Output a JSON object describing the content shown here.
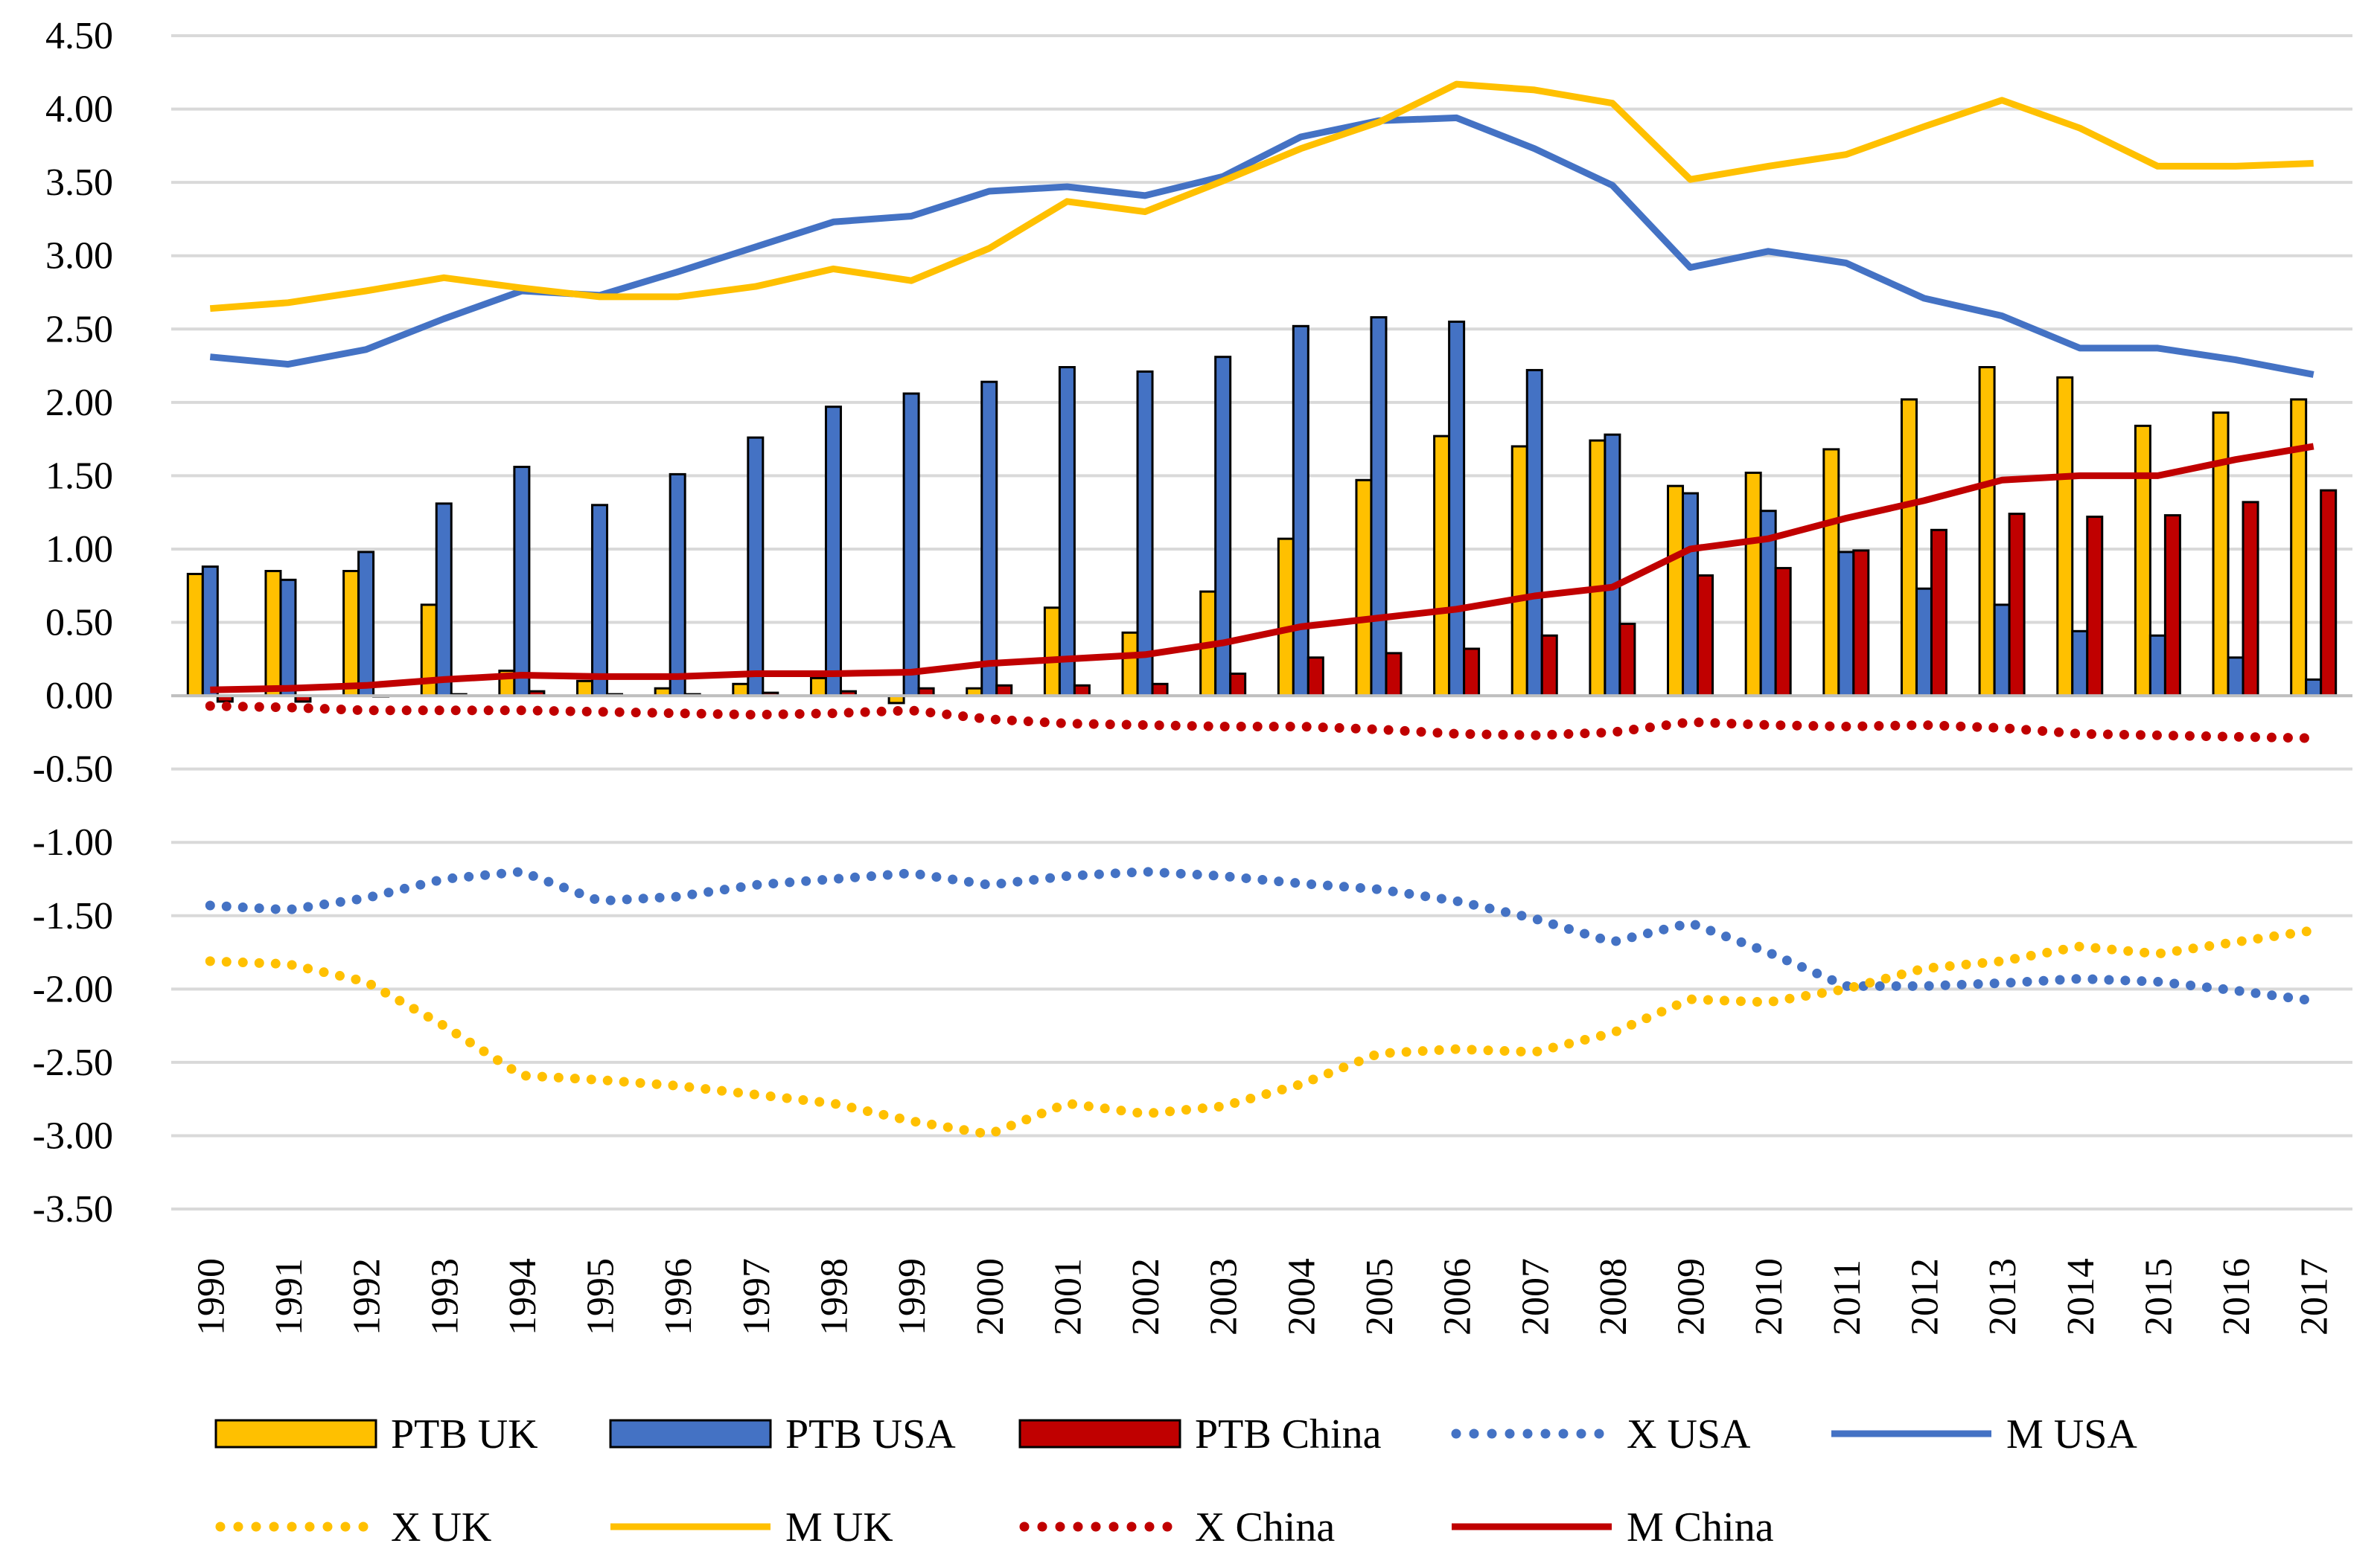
{
  "chart_data": {
    "type": "bar",
    "title": "",
    "xlabel": "",
    "ylabel": "",
    "ylim": [
      -3.5,
      4.5
    ],
    "ytick_step": 0.5,
    "grid": true,
    "legend_placement": "bottom",
    "x": [
      "1990",
      "1991",
      "1992",
      "1993",
      "1994",
      "1995",
      "1996",
      "1997",
      "1998",
      "1999",
      "2000",
      "2001",
      "2002",
      "2003",
      "2004",
      "2005",
      "2006",
      "2007",
      "2008",
      "2009",
      "2010",
      "2011",
      "2012",
      "2013",
      "2014",
      "2015",
      "2016",
      "2017"
    ],
    "bar_series": [
      {
        "name": "PTB UK",
        "color": "#FFC000",
        "values": [
          0.83,
          0.85,
          0.85,
          0.62,
          0.17,
          0.1,
          0.05,
          0.08,
          0.12,
          -0.05,
          0.05,
          0.6,
          0.43,
          0.71,
          1.07,
          1.47,
          1.77,
          1.7,
          1.74,
          1.43,
          1.52,
          1.68,
          2.02,
          2.24,
          2.17,
          1.84,
          1.93,
          2.02
        ]
      },
      {
        "name": "PTB USA",
        "color": "#4472C4",
        "values": [
          0.88,
          0.79,
          0.98,
          1.31,
          1.56,
          1.3,
          1.51,
          1.76,
          1.97,
          2.06,
          2.14,
          2.24,
          2.21,
          2.31,
          2.52,
          2.58,
          2.55,
          2.22,
          1.78,
          1.38,
          1.26,
          0.98,
          0.73,
          0.62,
          0.44,
          0.41,
          0.26,
          0.11
        ]
      },
      {
        "name": "PTB China",
        "color": "#C00000",
        "values": [
          -0.04,
          -0.04,
          0.0,
          0.01,
          0.03,
          0.01,
          0.01,
          0.02,
          0.03,
          0.05,
          0.07,
          0.07,
          0.08,
          0.15,
          0.26,
          0.29,
          0.32,
          0.41,
          0.49,
          0.82,
          0.87,
          0.99,
          1.13,
          1.24,
          1.22,
          1.23,
          1.32,
          1.4
        ]
      }
    ],
    "line_series": [
      {
        "name": "X USA",
        "color": "#4472C4",
        "style": "dotted",
        "values": [
          -1.43,
          -1.46,
          -1.38,
          -1.25,
          -1.2,
          -1.4,
          -1.37,
          -1.29,
          -1.25,
          -1.21,
          -1.29,
          -1.23,
          -1.2,
          -1.23,
          -1.28,
          -1.32,
          -1.4,
          -1.52,
          -1.68,
          -1.55,
          -1.75,
          -1.98,
          -1.98,
          -1.96,
          -1.93,
          -1.95,
          -2.01,
          -2.08
        ]
      },
      {
        "name": "M USA",
        "color": "#4472C4",
        "style": "solid",
        "values": [
          2.31,
          2.26,
          2.36,
          2.57,
          2.76,
          2.73,
          2.89,
          3.06,
          3.23,
          3.27,
          3.44,
          3.47,
          3.41,
          3.54,
          3.81,
          3.92,
          3.94,
          3.73,
          3.48,
          2.92,
          3.03,
          2.95,
          2.71,
          2.59,
          2.37,
          2.37,
          2.29,
          2.19
        ]
      },
      {
        "name": "X UK",
        "color": "#FFC000",
        "style": "dotted",
        "values": [
          -1.81,
          -1.83,
          -1.95,
          -2.25,
          -2.59,
          -2.62,
          -2.66,
          -2.72,
          -2.78,
          -2.9,
          -2.99,
          -2.78,
          -2.85,
          -2.8,
          -2.65,
          -2.44,
          -2.41,
          -2.43,
          -2.3,
          -2.07,
          -2.09,
          -2.0,
          -1.86,
          -1.81,
          -1.71,
          -1.76,
          -1.68,
          -1.6
        ]
      },
      {
        "name": "M UK",
        "color": "#FFC000",
        "style": "solid",
        "values": [
          2.64,
          2.68,
          2.76,
          2.85,
          2.78,
          2.72,
          2.72,
          2.79,
          2.91,
          2.83,
          3.05,
          3.37,
          3.3,
          3.51,
          3.73,
          3.91,
          4.17,
          4.13,
          4.04,
          3.52,
          3.61,
          3.69,
          3.88,
          4.06,
          3.87,
          3.61,
          3.61,
          3.63
        ]
      },
      {
        "name": "X China",
        "color": "#C00000",
        "style": "dotted",
        "values": [
          -0.07,
          -0.08,
          -0.1,
          -0.1,
          -0.1,
          -0.11,
          -0.12,
          -0.13,
          -0.12,
          -0.1,
          -0.16,
          -0.19,
          -0.2,
          -0.21,
          -0.21,
          -0.23,
          -0.26,
          -0.27,
          -0.25,
          -0.18,
          -0.2,
          -0.21,
          -0.2,
          -0.22,
          -0.26,
          -0.27,
          -0.28,
          -0.29
        ]
      },
      {
        "name": "M China",
        "color": "#C00000",
        "style": "solid",
        "values": [
          0.04,
          0.05,
          0.07,
          0.11,
          0.14,
          0.13,
          0.13,
          0.15,
          0.15,
          0.16,
          0.22,
          0.25,
          0.28,
          0.36,
          0.47,
          0.53,
          0.59,
          0.68,
          0.74,
          1.0,
          1.07,
          1.21,
          1.33,
          1.47,
          1.5,
          1.5,
          1.61,
          1.7
        ]
      }
    ],
    "legend": [
      {
        "name": "PTB UK",
        "kind": "bar",
        "color": "#FFC000"
      },
      {
        "name": "PTB USA",
        "kind": "bar",
        "color": "#4472C4"
      },
      {
        "name": "PTB China",
        "kind": "bar",
        "color": "#C00000"
      },
      {
        "name": "X USA",
        "kind": "dotted",
        "color": "#4472C4"
      },
      {
        "name": "M USA",
        "kind": "solid",
        "color": "#4472C4"
      },
      {
        "name": "X UK",
        "kind": "dotted",
        "color": "#FFC000"
      },
      {
        "name": "M UK",
        "kind": "solid",
        "color": "#FFC000"
      },
      {
        "name": "X China",
        "kind": "dotted",
        "color": "#C00000"
      },
      {
        "name": "M China",
        "kind": "solid",
        "color": "#C00000"
      }
    ]
  }
}
